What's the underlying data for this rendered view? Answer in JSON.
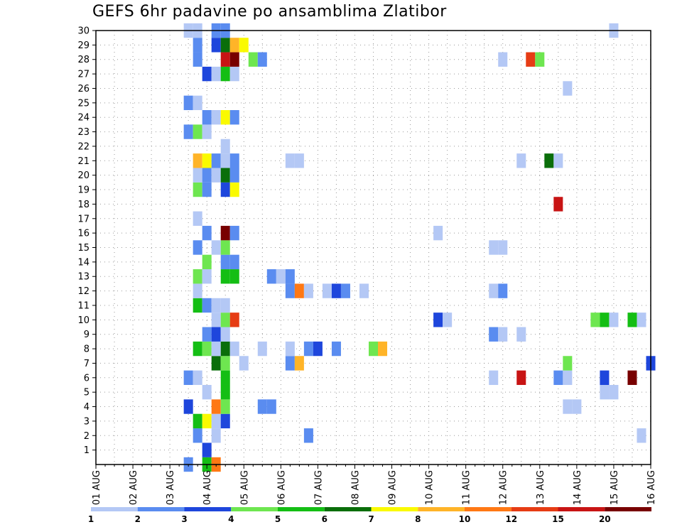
{
  "title": "GEFS 6hr padavine po ansamblima Zlatibor",
  "chart_data": {
    "type": "heatmap",
    "title": "GEFS 6hr padavine po ansamblima Zlatibor",
    "x_ticks": [
      "01 AUG",
      "02 AUG",
      "03 AUG",
      "04 AUG",
      "05 AUG",
      "06 AUG",
      "07 AUG",
      "08 AUG",
      "09 AUG",
      "10 AUG",
      "11 AUG",
      "12 AUG",
      "13 AUG",
      "14 AUG",
      "15 AUG",
      "16 AUG"
    ],
    "y_ticks": [
      "1",
      "2",
      "3",
      "4",
      "5",
      "6",
      "7",
      "8",
      "9",
      "10",
      "11",
      "12",
      "13",
      "14",
      "15",
      "16",
      "17",
      "18",
      "19",
      "20",
      "21",
      "22",
      "23",
      "24",
      "25",
      "26",
      "27",
      "28",
      "29",
      "30"
    ],
    "xlim_steps": [
      0,
      60
    ],
    "ylim": [
      0,
      30
    ],
    "grid": true,
    "colorbar": {
      "colors": [
        "#b4c8f5",
        "#5a8cf0",
        "#1e46dc",
        "#6ee650",
        "#14be14",
        "#0a6e0a",
        "#fafa00",
        "#ffb428",
        "#ff7814",
        "#e63c14",
        "#c81414",
        "#780000"
      ],
      "labels": [
        "1",
        "2",
        "3",
        "4",
        "5",
        "6",
        "7",
        "8",
        "10",
        "12",
        "15",
        "20"
      ]
    },
    "cells": [
      [
        10,
        0,
        2
      ],
      [
        12,
        0,
        5
      ],
      [
        13,
        0,
        9
      ],
      [
        12,
        1,
        3
      ],
      [
        11,
        2,
        2
      ],
      [
        13,
        2,
        1
      ],
      [
        23,
        2,
        2
      ],
      [
        59,
        2,
        1
      ],
      [
        11,
        3,
        5
      ],
      [
        12,
        3,
        7
      ],
      [
        13,
        3,
        1
      ],
      [
        14,
        3,
        3
      ],
      [
        10,
        4,
        3
      ],
      [
        13,
        4,
        9
      ],
      [
        14,
        4,
        4
      ],
      [
        18,
        4,
        2
      ],
      [
        19,
        4,
        2
      ],
      [
        51,
        4,
        1
      ],
      [
        52,
        4,
        1
      ],
      [
        12,
        5,
        1
      ],
      [
        14,
        5,
        5
      ],
      [
        55,
        5,
        1
      ],
      [
        56,
        5,
        1
      ],
      [
        10,
        6,
        2
      ],
      [
        11,
        6,
        1
      ],
      [
        14,
        6,
        5
      ],
      [
        43,
        6,
        1
      ],
      [
        46,
        6,
        11
      ],
      [
        50,
        6,
        2
      ],
      [
        51,
        6,
        1
      ],
      [
        55,
        6,
        3
      ],
      [
        58,
        6,
        12
      ],
      [
        13,
        7,
        6
      ],
      [
        14,
        7,
        4
      ],
      [
        16,
        7,
        1
      ],
      [
        21,
        7,
        2
      ],
      [
        22,
        7,
        8
      ],
      [
        51,
        7,
        4
      ],
      [
        60,
        7,
        3
      ],
      [
        11,
        8,
        5
      ],
      [
        12,
        8,
        4
      ],
      [
        13,
        8,
        1
      ],
      [
        14,
        8,
        6
      ],
      [
        15,
        8,
        1
      ],
      [
        18,
        8,
        1
      ],
      [
        21,
        8,
        1
      ],
      [
        23,
        8,
        2
      ],
      [
        24,
        8,
        3
      ],
      [
        26,
        8,
        2
      ],
      [
        30,
        8,
        4
      ],
      [
        31,
        8,
        8
      ],
      [
        12,
        9,
        2
      ],
      [
        13,
        9,
        3
      ],
      [
        14,
        9,
        1
      ],
      [
        43,
        9,
        2
      ],
      [
        44,
        9,
        1
      ],
      [
        46,
        9,
        1
      ],
      [
        13,
        10,
        1
      ],
      [
        14,
        10,
        4
      ],
      [
        15,
        10,
        10
      ],
      [
        37,
        10,
        3
      ],
      [
        38,
        10,
        1
      ],
      [
        54,
        10,
        4
      ],
      [
        55,
        10,
        5
      ],
      [
        56,
        10,
        1
      ],
      [
        58,
        10,
        5
      ],
      [
        59,
        10,
        1
      ],
      [
        11,
        11,
        5
      ],
      [
        12,
        11,
        2
      ],
      [
        13,
        11,
        1
      ],
      [
        14,
        11,
        1
      ],
      [
        11,
        12,
        1
      ],
      [
        21,
        12,
        2
      ],
      [
        22,
        12,
        9
      ],
      [
        23,
        12,
        1
      ],
      [
        25,
        12,
        1
      ],
      [
        26,
        12,
        3
      ],
      [
        27,
        12,
        2
      ],
      [
        29,
        12,
        1
      ],
      [
        43,
        12,
        1
      ],
      [
        44,
        12,
        2
      ],
      [
        11,
        13,
        4
      ],
      [
        12,
        13,
        1
      ],
      [
        14,
        13,
        5
      ],
      [
        15,
        13,
        5
      ],
      [
        19,
        13,
        2
      ],
      [
        20,
        13,
        1
      ],
      [
        21,
        13,
        2
      ],
      [
        12,
        14,
        4
      ],
      [
        14,
        14,
        2
      ],
      [
        15,
        14,
        2
      ],
      [
        11,
        15,
        2
      ],
      [
        13,
        15,
        1
      ],
      [
        14,
        15,
        4
      ],
      [
        43,
        15,
        1
      ],
      [
        44,
        15,
        1
      ],
      [
        12,
        16,
        2
      ],
      [
        14,
        16,
        12
      ],
      [
        15,
        16,
        2
      ],
      [
        37,
        16,
        1
      ],
      [
        11,
        17,
        1
      ],
      [
        50,
        18,
        11
      ],
      [
        11,
        19,
        4
      ],
      [
        12,
        19,
        2
      ],
      [
        14,
        19,
        3
      ],
      [
        15,
        19,
        7
      ],
      [
        11,
        20,
        1
      ],
      [
        12,
        20,
        2
      ],
      [
        13,
        20,
        1
      ],
      [
        14,
        20,
        6
      ],
      [
        15,
        20,
        2
      ],
      [
        11,
        21,
        8
      ],
      [
        12,
        21,
        7
      ],
      [
        13,
        21,
        2
      ],
      [
        14,
        21,
        1
      ],
      [
        15,
        21,
        2
      ],
      [
        21,
        21,
        1
      ],
      [
        22,
        21,
        1
      ],
      [
        46,
        21,
        1
      ],
      [
        49,
        21,
        6
      ],
      [
        50,
        21,
        1
      ],
      [
        14,
        22,
        1
      ],
      [
        10,
        23,
        2
      ],
      [
        11,
        23,
        4
      ],
      [
        12,
        23,
        1
      ],
      [
        12,
        24,
        2
      ],
      [
        13,
        24,
        1
      ],
      [
        14,
        24,
        7
      ],
      [
        15,
        24,
        2
      ],
      [
        10,
        25,
        2
      ],
      [
        11,
        25,
        1
      ],
      [
        51,
        26,
        1
      ],
      [
        12,
        27,
        3
      ],
      [
        13,
        27,
        1
      ],
      [
        14,
        27,
        5
      ],
      [
        15,
        27,
        1
      ],
      [
        11,
        28,
        2
      ],
      [
        14,
        28,
        11
      ],
      [
        15,
        28,
        12
      ],
      [
        17,
        28,
        4
      ],
      [
        18,
        28,
        2
      ],
      [
        44,
        28,
        1
      ],
      [
        47,
        28,
        10
      ],
      [
        48,
        28,
        4
      ],
      [
        11,
        29,
        2
      ],
      [
        13,
        29,
        3
      ],
      [
        14,
        29,
        6
      ],
      [
        15,
        29,
        8
      ],
      [
        16,
        29,
        7
      ],
      [
        10,
        30,
        1
      ],
      [
        11,
        30,
        1
      ],
      [
        13,
        30,
        2
      ],
      [
        14,
        30,
        2
      ],
      [
        56,
        30,
        1
      ]
    ]
  }
}
